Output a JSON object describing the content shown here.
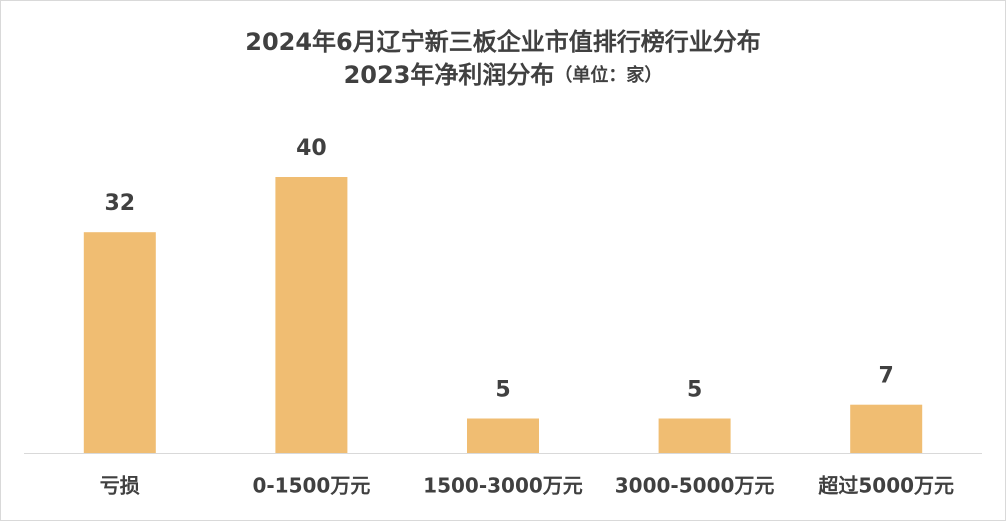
{
  "chart_data": {
    "type": "bar",
    "title": "2024年6月辽宁新三板企业市值排行榜行业分布",
    "subtitle": "2023年净利润分布",
    "unit": "（单位：家）",
    "categories": [
      "亏损",
      "0-1500万元",
      "1500-3000万元",
      "3000-5000万元",
      "超过5000万元"
    ],
    "values": [
      32,
      40,
      5,
      5,
      7
    ],
    "color": "#f0bd72"
  }
}
